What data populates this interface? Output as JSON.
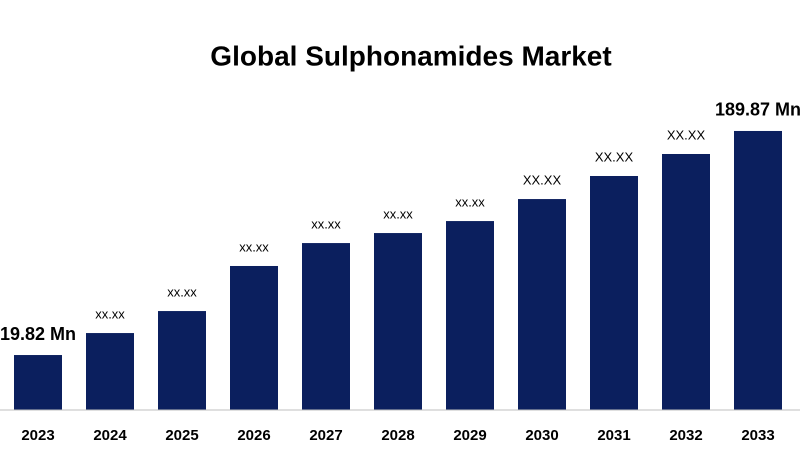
{
  "chart_data": {
    "type": "bar",
    "title": "Global Sulphonamides Market",
    "categories": [
      "2023",
      "2024",
      "2025",
      "2026",
      "2027",
      "2028",
      "2029",
      "2030",
      "2031",
      "2032",
      "2033"
    ],
    "values": [
      19.82,
      36.5,
      53.2,
      87.4,
      104.8,
      112.4,
      121.5,
      138.2,
      155.7,
      172.4,
      189.87
    ],
    "value_labels": [
      "19.82 Mn",
      "xx.xx",
      "xx.xx",
      "xx.xx",
      "xx.xx",
      "xx.xx",
      "xx.xx",
      "XX.XX",
      "XX.XX",
      "XX.XX",
      "189.87 Mn"
    ],
    "color": "#0b1f5e",
    "ylim": [
      -21.9,
      198.2
    ]
  }
}
